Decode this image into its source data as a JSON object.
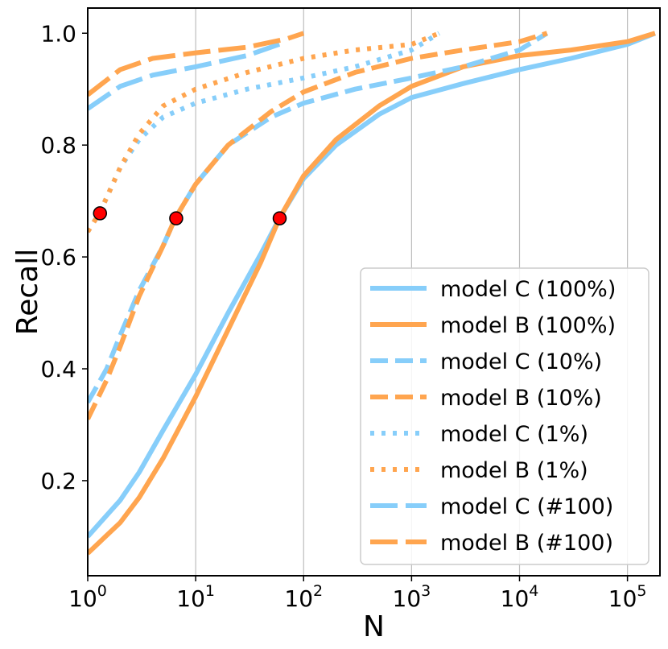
{
  "chart_data": {
    "type": "line",
    "title": "",
    "xlabel": "N",
    "ylabel": "Recall",
    "xscale": "log",
    "xlim": [
      1,
      200000
    ],
    "ylim": [
      0.03,
      1.045
    ],
    "x_ticks": [
      {
        "value": 1,
        "base": "10",
        "exp": "0"
      },
      {
        "value": 10,
        "base": "10",
        "exp": "1"
      },
      {
        "value": 100,
        "base": "10",
        "exp": "2"
      },
      {
        "value": 1000,
        "base": "10",
        "exp": "3"
      },
      {
        "value": 10000,
        "base": "10",
        "exp": "4"
      },
      {
        "value": 100000,
        "base": "10",
        "exp": "5"
      }
    ],
    "y_ticks": [
      {
        "value": 0.2,
        "label": "0.2"
      },
      {
        "value": 0.4,
        "label": "0.4"
      },
      {
        "value": 0.6,
        "label": "0.6"
      },
      {
        "value": 0.8,
        "label": "0.8"
      },
      {
        "value": 1.0,
        "label": "1.0"
      }
    ],
    "grid": "vertical",
    "legend_position": "lower-right",
    "colors": {
      "model_c": "#87CEFA",
      "model_b": "#FFA54F",
      "marker": "#FF0000"
    },
    "series": [
      {
        "name": "model C (100%)",
        "color": "#87CEFA",
        "dash": "solid",
        "points": [
          [
            1,
            0.1
          ],
          [
            2,
            0.165
          ],
          [
            3,
            0.215
          ],
          [
            5,
            0.29
          ],
          [
            10,
            0.39
          ],
          [
            20,
            0.5
          ],
          [
            40,
            0.605
          ],
          [
            60,
            0.67
          ],
          [
            100,
            0.74
          ],
          [
            200,
            0.8
          ],
          [
            500,
            0.855
          ],
          [
            1000,
            0.885
          ],
          [
            3000,
            0.91
          ],
          [
            10000,
            0.935
          ],
          [
            30000,
            0.955
          ],
          [
            100000,
            0.98
          ],
          [
            180000,
            1.0
          ]
        ]
      },
      {
        "name": "model B (100%)",
        "color": "#FFA54F",
        "dash": "solid",
        "points": [
          [
            1,
            0.07
          ],
          [
            2,
            0.125
          ],
          [
            3,
            0.17
          ],
          [
            5,
            0.24
          ],
          [
            10,
            0.35
          ],
          [
            20,
            0.47
          ],
          [
            40,
            0.59
          ],
          [
            60,
            0.67
          ],
          [
            100,
            0.745
          ],
          [
            200,
            0.81
          ],
          [
            500,
            0.87
          ],
          [
            1000,
            0.905
          ],
          [
            3000,
            0.94
          ],
          [
            10000,
            0.96
          ],
          [
            30000,
            0.97
          ],
          [
            100000,
            0.985
          ],
          [
            180000,
            1.0
          ]
        ]
      },
      {
        "name": "model C (10%)",
        "color": "#87CEFA",
        "dash": "dashed",
        "points": [
          [
            1,
            0.34
          ],
          [
            1.5,
            0.4
          ],
          [
            2,
            0.46
          ],
          [
            3,
            0.54
          ],
          [
            5,
            0.62
          ],
          [
            6.5,
            0.67
          ],
          [
            10,
            0.73
          ],
          [
            20,
            0.8
          ],
          [
            50,
            0.85
          ],
          [
            100,
            0.875
          ],
          [
            300,
            0.9
          ],
          [
            1000,
            0.92
          ],
          [
            3000,
            0.94
          ],
          [
            10000,
            0.97
          ],
          [
            18000,
            1.0
          ]
        ]
      },
      {
        "name": "model B (10%)",
        "color": "#FFA54F",
        "dash": "dashed",
        "points": [
          [
            1,
            0.31
          ],
          [
            1.5,
            0.38
          ],
          [
            2,
            0.44
          ],
          [
            3,
            0.53
          ],
          [
            5,
            0.62
          ],
          [
            6.5,
            0.67
          ],
          [
            10,
            0.73
          ],
          [
            20,
            0.8
          ],
          [
            50,
            0.86
          ],
          [
            100,
            0.895
          ],
          [
            300,
            0.93
          ],
          [
            1000,
            0.955
          ],
          [
            3000,
            0.97
          ],
          [
            10000,
            0.985
          ],
          [
            18000,
            1.0
          ]
        ]
      },
      {
        "name": "model C (1%)",
        "color": "#87CEFA",
        "dash": "dotted",
        "points": [
          [
            1,
            0.645
          ],
          [
            1.3,
            0.68
          ],
          [
            2,
            0.76
          ],
          [
            3,
            0.81
          ],
          [
            5,
            0.85
          ],
          [
            10,
            0.875
          ],
          [
            30,
            0.9
          ],
          [
            100,
            0.92
          ],
          [
            300,
            0.94
          ],
          [
            1000,
            0.97
          ],
          [
            1800,
            1.0
          ]
        ]
      },
      {
        "name": "model B (1%)",
        "color": "#FFA54F",
        "dash": "dotted",
        "points": [
          [
            1,
            0.645
          ],
          [
            1.3,
            0.68
          ],
          [
            2,
            0.76
          ],
          [
            3,
            0.82
          ],
          [
            5,
            0.87
          ],
          [
            10,
            0.9
          ],
          [
            30,
            0.93
          ],
          [
            100,
            0.955
          ],
          [
            300,
            0.97
          ],
          [
            1000,
            0.98
          ],
          [
            1800,
            1.0
          ]
        ]
      },
      {
        "name": "model C (#100)",
        "color": "#87CEFA",
        "dash": "longdash",
        "points": [
          [
            1,
            0.865
          ],
          [
            2,
            0.905
          ],
          [
            4,
            0.925
          ],
          [
            10,
            0.94
          ],
          [
            30,
            0.96
          ],
          [
            70,
            0.985
          ]
        ]
      },
      {
        "name": "model B (#100)",
        "color": "#FFA54F",
        "dash": "longdash",
        "points": [
          [
            1,
            0.89
          ],
          [
            2,
            0.935
          ],
          [
            4,
            0.955
          ],
          [
            10,
            0.965
          ],
          [
            30,
            0.975
          ],
          [
            70,
            0.99
          ],
          [
            100,
            1.0
          ]
        ]
      }
    ],
    "markers": [
      {
        "x": 1.3,
        "y": 0.678
      },
      {
        "x": 6.6,
        "y": 0.669
      },
      {
        "x": 60,
        "y": 0.669
      }
    ]
  }
}
